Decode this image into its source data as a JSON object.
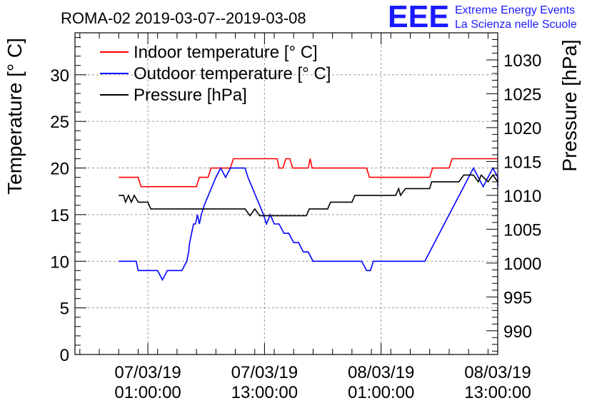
{
  "chart_data": {
    "type": "line",
    "title": "ROMA-02 2019-03-07--2019-03-08",
    "ylabel_left": "Temperature [° C]",
    "ylabel_right": "Pressure [hPa]",
    "grid": true,
    "legend_position": "top-left",
    "ylim_left": [
      0,
      34.5
    ],
    "ylim_right": [
      986.5,
      1034
    ],
    "yticks_left": [
      "0",
      "5",
      "10",
      "15",
      "20",
      "25",
      "30"
    ],
    "yticks_right": [
      "990",
      "995",
      "1000",
      "1005",
      "1010",
      "1015",
      "1020",
      "1025",
      "1030"
    ],
    "x_unit": "hours since 2019-03-06 22:00",
    "xlim": [
      -4.5,
      39
    ],
    "x_ticks": [
      {
        "x": 3,
        "line1": "07/03/19",
        "line2": "01:00:00"
      },
      {
        "x": 15,
        "line1": "07/03/19",
        "line2": "13:00:00"
      },
      {
        "x": 27,
        "line1": "08/03/19",
        "line2": "01:00:00"
      },
      {
        "x": 39,
        "line1": "08/03/19",
        "line2": "13:00:00"
      }
    ],
    "series": [
      {
        "name": "Indoor temperature [° C]",
        "color": "#ff0000",
        "axis": "left",
        "points": [
          [
            0,
            19
          ],
          [
            2,
            19
          ],
          [
            2.3,
            18
          ],
          [
            8,
            18
          ],
          [
            8.3,
            19
          ],
          [
            9.2,
            19
          ],
          [
            9.5,
            20
          ],
          [
            11.5,
            20
          ],
          [
            11.8,
            21
          ],
          [
            16.3,
            21
          ],
          [
            16.5,
            20
          ],
          [
            16.9,
            20
          ],
          [
            17.2,
            21
          ],
          [
            17.6,
            21
          ],
          [
            17.9,
            20
          ],
          [
            19.5,
            20
          ],
          [
            19.7,
            21
          ],
          [
            19.9,
            20
          ],
          [
            25.5,
            20
          ],
          [
            25.8,
            19
          ],
          [
            32,
            19
          ],
          [
            32.3,
            20
          ],
          [
            34,
            20
          ],
          [
            34.3,
            21
          ],
          [
            39,
            21
          ]
        ]
      },
      {
        "name": "Outdoor temperature [° C]",
        "color": "#0000ff",
        "axis": "left",
        "points": [
          [
            0,
            10
          ],
          [
            1.8,
            10
          ],
          [
            2,
            9
          ],
          [
            4,
            9
          ],
          [
            4.5,
            8
          ],
          [
            5,
            9
          ],
          [
            6.5,
            9
          ],
          [
            7,
            10
          ],
          [
            7.2,
            11
          ],
          [
            7.3,
            12
          ],
          [
            7.5,
            13
          ],
          [
            7.7,
            14
          ],
          [
            7.9,
            14
          ],
          [
            8.1,
            15
          ],
          [
            8.3,
            14
          ],
          [
            8.5,
            15
          ],
          [
            8.8,
            16
          ],
          [
            9.2,
            17
          ],
          [
            9.6,
            18
          ],
          [
            10,
            19
          ],
          [
            10.5,
            20
          ],
          [
            11,
            19
          ],
          [
            11.5,
            20
          ],
          [
            12,
            20
          ],
          [
            12.3,
            20
          ],
          [
            13,
            20
          ],
          [
            13.3,
            19
          ],
          [
            13.7,
            18
          ],
          [
            14.1,
            17
          ],
          [
            14.5,
            16
          ],
          [
            14.9,
            15
          ],
          [
            15.2,
            14
          ],
          [
            15.6,
            15
          ],
          [
            16,
            14
          ],
          [
            16.5,
            14
          ],
          [
            17,
            13
          ],
          [
            17.5,
            13
          ],
          [
            18,
            12
          ],
          [
            18.5,
            12
          ],
          [
            19,
            11
          ],
          [
            19.5,
            11
          ],
          [
            20,
            10
          ],
          [
            20.5,
            10
          ],
          [
            21,
            10
          ],
          [
            22,
            10
          ],
          [
            23,
            10
          ],
          [
            24,
            10
          ],
          [
            25,
            10
          ],
          [
            25.5,
            9
          ],
          [
            25.9,
            9
          ],
          [
            26.2,
            10
          ],
          [
            26.6,
            10
          ],
          [
            27,
            10
          ],
          [
            27.3,
            10
          ],
          [
            28,
            10
          ],
          [
            29,
            10
          ],
          [
            30,
            10
          ],
          [
            31,
            10
          ],
          [
            31.5,
            10
          ],
          [
            32,
            11
          ],
          [
            32.5,
            12
          ],
          [
            33,
            13
          ],
          [
            33.5,
            14
          ],
          [
            34,
            15
          ],
          [
            34.5,
            16
          ],
          [
            35,
            17
          ],
          [
            35.5,
            18
          ],
          [
            36,
            19
          ],
          [
            36.5,
            20
          ],
          [
            37,
            19
          ],
          [
            37.5,
            18
          ],
          [
            38,
            19
          ],
          [
            38.5,
            20
          ],
          [
            39,
            19
          ],
          [
            39,
            18
          ]
        ]
      },
      {
        "name": "Pressure [hPa]",
        "color": "#000000",
        "axis": "right",
        "points": [
          [
            0,
            1010
          ],
          [
            0.5,
            1010
          ],
          [
            0.7,
            1009
          ],
          [
            1,
            1010
          ],
          [
            1.3,
            1009
          ],
          [
            1.6,
            1010
          ],
          [
            2,
            1009
          ],
          [
            3,
            1009
          ],
          [
            3.3,
            1008
          ],
          [
            9,
            1008
          ],
          [
            13,
            1008
          ],
          [
            13.5,
            1007
          ],
          [
            14,
            1008
          ],
          [
            14.5,
            1007
          ],
          [
            19,
            1007
          ],
          [
            19.3,
            1007
          ],
          [
            19.6,
            1008
          ],
          [
            21.5,
            1008
          ],
          [
            21.8,
            1009
          ],
          [
            24,
            1009
          ],
          [
            24.3,
            1010
          ],
          [
            27,
            1010
          ],
          [
            28.5,
            1010
          ],
          [
            28.8,
            1011
          ],
          [
            29,
            1010
          ],
          [
            29.5,
            1011
          ],
          [
            32,
            1011
          ],
          [
            32.2,
            1012
          ],
          [
            35,
            1012
          ],
          [
            35.5,
            1013
          ],
          [
            36.5,
            1013
          ],
          [
            37,
            1012
          ],
          [
            37.3,
            1013
          ],
          [
            38,
            1012
          ],
          [
            38.5,
            1013
          ],
          [
            39,
            1012
          ]
        ]
      }
    ]
  },
  "legend": [
    {
      "label": "Indoor temperature [° C]",
      "color": "#ff0000"
    },
    {
      "label": "Outdoor temperature [° C]",
      "color": "#0000ff"
    },
    {
      "label": "Pressure [hPa]",
      "color": "#000000"
    }
  ],
  "logo": {
    "mark": "EEE",
    "line1": "Extreme Energy Events",
    "line2": "La Scienza nelle Scuole",
    "color": "#1a1aff"
  }
}
